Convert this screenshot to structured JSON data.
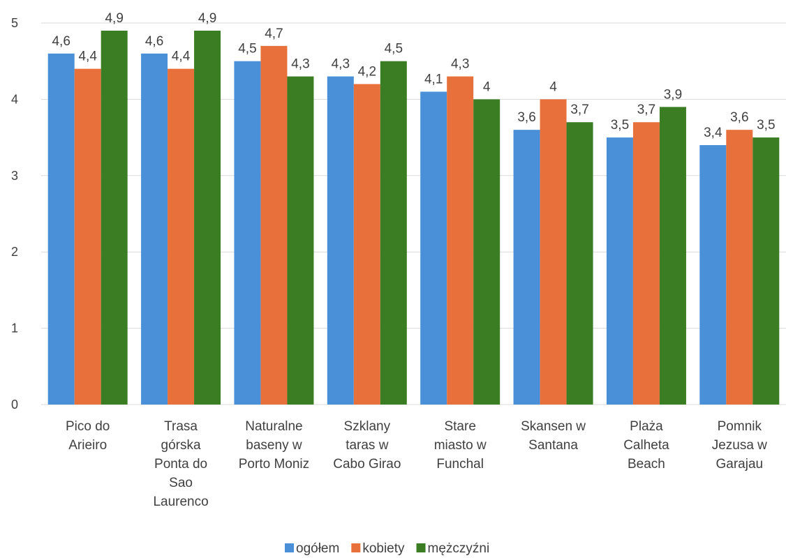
{
  "chart_data": {
    "type": "bar",
    "title": "",
    "xlabel": "",
    "ylabel": "",
    "ylim": [
      0,
      5
    ],
    "yticks": [
      "0",
      "1",
      "2",
      "3",
      "4",
      "5"
    ],
    "grid": true,
    "legend_position": "bottom",
    "categories": [
      [
        "Pico do",
        "Arieiro"
      ],
      [
        "Trasa",
        "górska",
        "Ponta do",
        "Sao",
        "Laurenco"
      ],
      [
        "Naturalne",
        "baseny w",
        "Porto Moniz"
      ],
      [
        "Szklany",
        "taras w",
        "Cabo Girao"
      ],
      [
        "Stare",
        "miasto w",
        "Funchal"
      ],
      [
        "Skansen w",
        "Santana"
      ],
      [
        "Plaża",
        "Calheta",
        "Beach"
      ],
      [
        "Pomnik",
        "Jezusa w",
        "Garajau"
      ]
    ],
    "series": [
      {
        "name": "ogółem",
        "color": "#4a90d9",
        "values": [
          4.6,
          4.6,
          4.5,
          4.3,
          4.1,
          3.6,
          3.5,
          3.4
        ],
        "labels": [
          "4,6",
          "4,6",
          "4,5",
          "4,3",
          "4,1",
          "3,6",
          "3,5",
          "3,4"
        ]
      },
      {
        "name": "kobiety",
        "color": "#e8703a",
        "values": [
          4.4,
          4.4,
          4.7,
          4.2,
          4.3,
          4.0,
          3.7,
          3.6
        ],
        "labels": [
          "4,4",
          "4,4",
          "4,7",
          "4,2",
          "4,3",
          "4",
          "3,7",
          "3,6"
        ]
      },
      {
        "name": "mężczyźni",
        "color": "#3b7d23",
        "values": [
          4.9,
          4.9,
          4.3,
          4.5,
          4.0,
          3.7,
          3.9,
          3.5
        ],
        "labels": [
          "4,9",
          "4,9",
          "4,3",
          "4,5",
          "4",
          "3,7",
          "3,9",
          "3,5"
        ]
      }
    ]
  }
}
